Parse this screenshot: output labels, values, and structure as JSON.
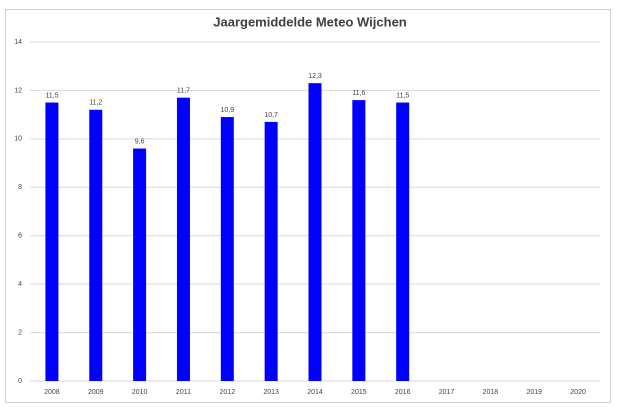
{
  "chart_data": {
    "type": "bar",
    "title": "Jaargemiddelde Meteo Wijchen",
    "categories": [
      "2008",
      "2009",
      "2010",
      "2011",
      "2012",
      "2013",
      "2014",
      "2015",
      "2016",
      "2017",
      "2018",
      "2019",
      "2020"
    ],
    "values": [
      11.5,
      11.2,
      9.6,
      11.7,
      10.9,
      10.7,
      12.3,
      11.6,
      11.5,
      null,
      null,
      null,
      null
    ],
    "value_labels": [
      "11,5",
      "11,2",
      "9,6",
      "11,7",
      "10,9",
      "10,7",
      "12,3",
      "11,6",
      "11,5",
      null,
      null,
      null,
      null
    ],
    "color": "#0000ff",
    "ylim": [
      0,
      14
    ],
    "yticks": [
      0,
      2,
      4,
      6,
      8,
      10,
      12,
      14
    ],
    "grid": true
  }
}
